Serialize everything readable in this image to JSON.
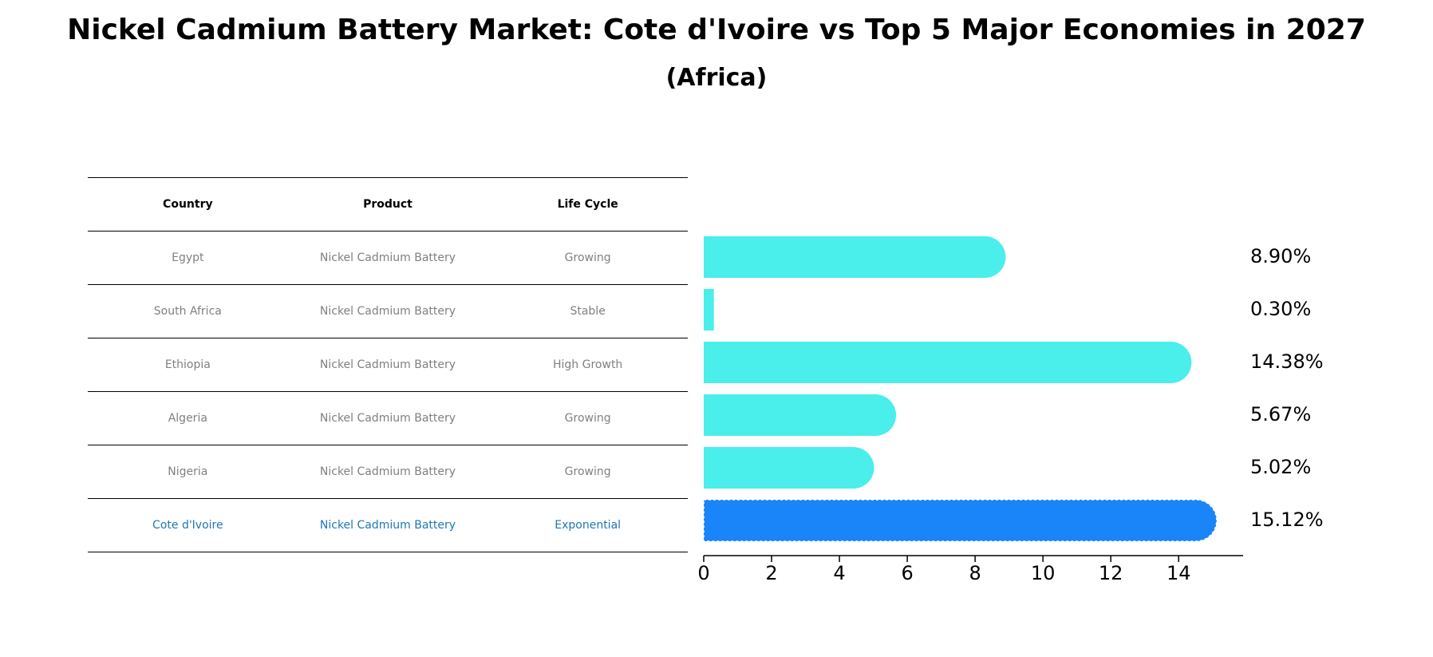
{
  "title": "Nickel Cadmium Battery Market: Cote d'Ivoire vs Top 5 Major Economies in 2027",
  "subtitle": "(Africa)",
  "table": {
    "headers": [
      "Country",
      "Product",
      "Life Cycle"
    ],
    "rows": [
      [
        "Egypt",
        "Nickel Cadmium Battery",
        "Growing"
      ],
      [
        "South Africa",
        "Nickel Cadmium Battery",
        "Stable"
      ],
      [
        "Ethiopia",
        "Nickel Cadmium Battery",
        "High Growth"
      ],
      [
        "Algeria",
        "Nickel Cadmium Battery",
        "Growing"
      ],
      [
        "Nigeria",
        "Nickel Cadmium Battery",
        "Growing"
      ],
      [
        "Cote d'Ivoire",
        "Nickel Cadmium Battery",
        "Exponential"
      ]
    ],
    "highlight_row": 5
  },
  "chart_data": {
    "type": "bar",
    "orientation": "horizontal",
    "categories": [
      "Egypt",
      "South Africa",
      "Ethiopia",
      "Algeria",
      "Nigeria",
      "Cote d'Ivoire"
    ],
    "values": [
      8.9,
      0.3,
      14.38,
      5.67,
      5.02,
      15.12
    ],
    "value_labels": [
      "8.90%",
      "0.30%",
      "14.38%",
      "5.67%",
      "5.02%",
      "15.12%"
    ],
    "xticks": [
      "0",
      "2",
      "4",
      "6",
      "8",
      "10",
      "12",
      "14"
    ],
    "xlim": [
      0,
      15.9
    ],
    "title": "",
    "xlabel": "",
    "ylabel": "",
    "grid": false,
    "colors": {
      "default": "#4aeeea",
      "highlight": "#1a85f8"
    },
    "highlight_index": 5
  }
}
